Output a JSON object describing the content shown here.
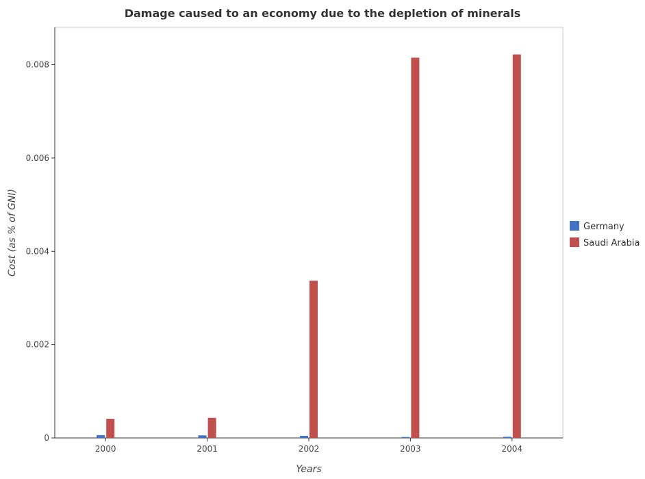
{
  "chart_data": {
    "type": "bar",
    "title": "Damage caused to an economy due to the depletion of minerals",
    "xlabel": "Years",
    "ylabel": "Cost (as % of GNI)",
    "categories": [
      "2000",
      "2001",
      "2002",
      "2003",
      "2004"
    ],
    "series": [
      {
        "name": "Germany",
        "color": "#4472c4",
        "values": [
          6e-05,
          5.5e-05,
          4.5e-05,
          2e-05,
          2.5e-05
        ]
      },
      {
        "name": "Saudi Arabia",
        "color": "#c0504d",
        "values": [
          0.00041,
          0.00043,
          0.00337,
          0.00815,
          0.00822
        ]
      }
    ],
    "yticks": [
      0,
      0.002,
      0.004,
      0.006,
      0.008
    ],
    "ytick_labels": [
      "0",
      "0.002",
      "0.004",
      "0.006",
      "0.008"
    ],
    "ylim": [
      0,
      0.0088
    ],
    "legend_position": "right",
    "grid": false
  }
}
